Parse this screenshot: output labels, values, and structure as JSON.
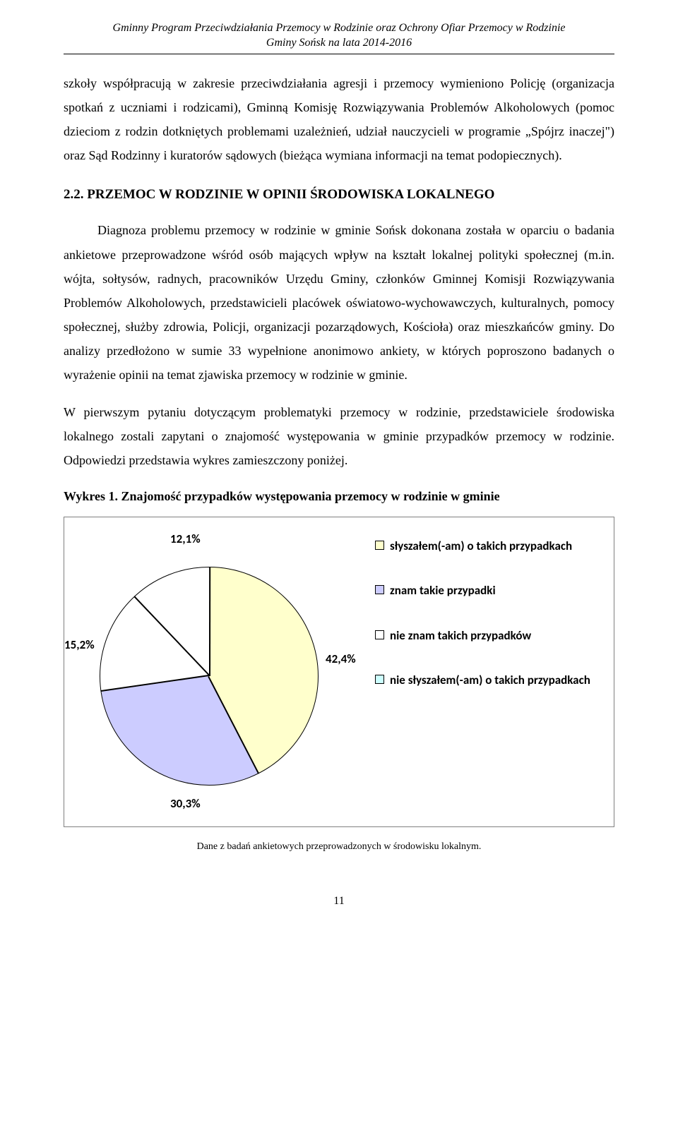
{
  "header": {
    "line1": "Gminny Program Przeciwdziałania Przemocy w Rodzinie oraz Ochrony Ofiar Przemocy w Rodzinie",
    "line2": "Gminy Sońsk na lata 2014-2016"
  },
  "para1": "szkoły współpracują w zakresie przeciwdziałania agresji i przemocy wymieniono Policję (organizacja spotkań z uczniami i rodzicami), Gminną Komisję Rozwiązywania Problemów Alkoholowych (pomoc dzieciom z rodzin dotkniętych problemami uzależnień, udział nauczycieli w programie „Spójrz inaczej\") oraz Sąd Rodzinny i kuratorów sądowych (bieżąca wymiana informacji na temat podopiecznych).",
  "section_heading": "2.2. PRZEMOC W RODZINIE W OPINII ŚRODOWISKA LOKALNEGO",
  "para2": "Diagnoza problemu przemocy w rodzinie w gminie Sońsk dokonana została w oparciu o badania ankietowe przeprowadzone wśród osób mających wpływ na kształt lokalnej polityki społecznej (m.in. wójta, sołtysów, radnych, pracowników Urzędu Gminy, członków Gminnej Komisji Rozwiązywania Problemów Alkoholowych, przedstawicieli placówek oświatowo-wychowawczych, kulturalnych, pomocy społecznej, służby zdrowia, Policji, organizacji pozarządowych, Kościoła) oraz mieszkańców gminy. Do analizy przedłożono w sumie 33 wypełnione anonimowo ankiety, w których poproszono badanych o wyrażenie opinii na temat zjawiska przemocy w rodzinie w gminie.",
  "para3": "W pierwszym pytaniu dotyczącym problematyki przemocy w rodzinie, przedstawiciele środowiska lokalnego zostali zapytani o znajomość występowania w gminie przypadków przemocy w rodzinie. Odpowiedzi przedstawia wykres zamieszczony poniżej.",
  "chart": {
    "title": "Wykres 1. Znajomość przypadków występowania przemocy w rodzinie w gminie",
    "type": "pie",
    "background_color": "#ffffff",
    "border_color": "#808080",
    "slice_border": "#000000",
    "label_fontsize": 17,
    "label_fontweight": "bold",
    "slices": [
      {
        "label": "słyszałem(-am) o takich przypadkach",
        "value": 42.4,
        "color": "#ffffcc",
        "pct_label": "42,4%"
      },
      {
        "label": "znam takie przypadki",
        "value": 30.3,
        "color": "#ccccff",
        "pct_label": "30,3%"
      },
      {
        "label": "nie znam takich przypadków",
        "value": 15.2,
        "color": "#ffffff",
        "pct_label": "15,2%"
      },
      {
        "label": "nie słyszałem(-am) o takich przypadkach",
        "value": 12.1,
        "color": "#ccffff",
        "pct_label": "12,1%"
      }
    ],
    "caption": "Dane z badań ankietowych przeprowadzonych w środowisku lokalnym."
  },
  "page_number": "11"
}
